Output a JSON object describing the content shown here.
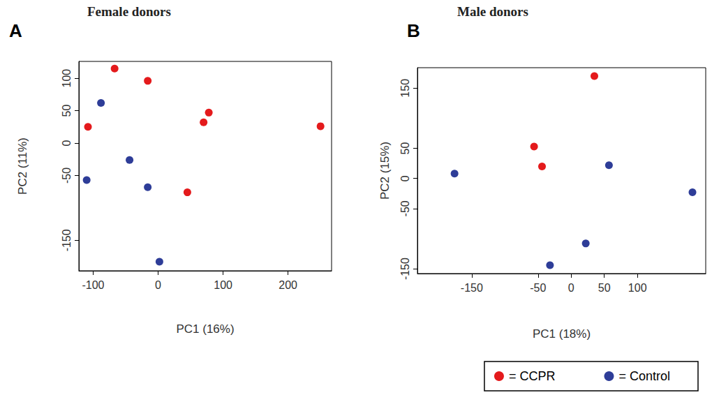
{
  "chart_data": [
    {
      "type": "scatter",
      "title": "Female donors",
      "annotations": [
        "A"
      ],
      "xlabel": "PC1 (16%)",
      "ylabel": "PC2 (11%)",
      "xlim": [
        -122,
        267
      ],
      "xticks": [
        -100,
        0,
        100,
        200
      ],
      "ylim": [
        -197,
        126
      ],
      "yticks": [
        -150,
        -50,
        0,
        50,
        100
      ],
      "grid": false,
      "marker": "circle",
      "series": [
        {
          "name": "= CCPR",
          "color": "#e41a1c",
          "x": [
            -67,
            -16,
            78,
            70,
            250,
            -108,
            45
          ],
          "values": [
            115,
            96,
            47,
            32,
            26,
            25,
            -76
          ]
        },
        {
          "name": "= Control",
          "color": "#2e3d98",
          "x": [
            -88,
            -44,
            -110,
            -16,
            2
          ],
          "values": [
            62,
            -26,
            -57,
            -68,
            -183
          ]
        }
      ]
    },
    {
      "type": "scatter",
      "title": "Male donors",
      "annotations": [
        "B"
      ],
      "xlabel": "PC1 (18%)",
      "ylabel": "PC2 (15%)",
      "xlim": [
        -232,
        203
      ],
      "xticks": [
        -150,
        -50,
        0,
        50,
        100
      ],
      "ylim": [
        -158,
        184
      ],
      "yticks": [
        -150,
        -50,
        0,
        50,
        150
      ],
      "grid": false,
      "marker": "circle",
      "legend": "bottom right",
      "series": [
        {
          "name": "= CCPR",
          "color": "#e41a1c",
          "x": [
            35,
            -56,
            -44
          ],
          "values": [
            170,
            53,
            20
          ]
        },
        {
          "name": "= Control",
          "color": "#2e3d98",
          "x": [
            -176,
            57,
            183,
            22,
            -32
          ],
          "values": [
            8,
            22,
            -23,
            -108,
            -144
          ]
        }
      ]
    }
  ]
}
